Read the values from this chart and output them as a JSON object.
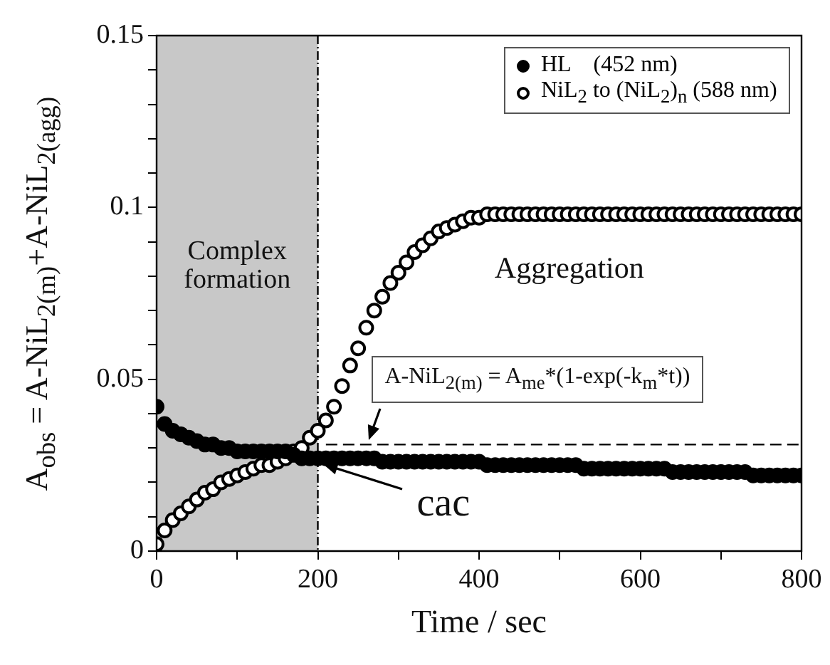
{
  "chart_data": {
    "type": "scatter",
    "xlabel": "Time / sec",
    "ylabel": "A$_{obs}$ = A-NiL$_{2(m)}$+A-NiL$_{2(agg)}$",
    "x": [
      0,
      10,
      20,
      30,
      40,
      50,
      60,
      70,
      80,
      90,
      100,
      110,
      120,
      130,
      140,
      150,
      160,
      170,
      180,
      190,
      200,
      210,
      220,
      230,
      240,
      250,
      260,
      270,
      280,
      290,
      300,
      310,
      320,
      330,
      340,
      350,
      360,
      370,
      380,
      390,
      400,
      410,
      420,
      430,
      440,
      450,
      460,
      470,
      480,
      490,
      500,
      510,
      520,
      530,
      540,
      550,
      560,
      570,
      580,
      590,
      600,
      610,
      620,
      630,
      640,
      650,
      660,
      670,
      680,
      690,
      700,
      710,
      720,
      730,
      740,
      750,
      760,
      770,
      780,
      790,
      800
    ],
    "series": [
      {
        "name": "HL    (452 nm)",
        "color": "#000000",
        "marker": "circle",
        "values": [
          0.042,
          0.037,
          0.035,
          0.034,
          0.033,
          0.032,
          0.031,
          0.031,
          0.03,
          0.03,
          0.029,
          0.029,
          0.029,
          0.029,
          0.029,
          0.029,
          0.029,
          0.028,
          0.027,
          0.027,
          0.027,
          0.027,
          0.027,
          0.027,
          0.027,
          0.027,
          0.027,
          0.027,
          0.026,
          0.026,
          0.026,
          0.026,
          0.026,
          0.026,
          0.026,
          0.026,
          0.026,
          0.026,
          0.026,
          0.026,
          0.026,
          0.025,
          0.025,
          0.025,
          0.025,
          0.025,
          0.025,
          0.025,
          0.025,
          0.025,
          0.025,
          0.025,
          0.025,
          0.024,
          0.024,
          0.024,
          0.024,
          0.024,
          0.024,
          0.024,
          0.024,
          0.024,
          0.024,
          0.024,
          0.023,
          0.023,
          0.023,
          0.023,
          0.023,
          0.023,
          0.023,
          0.023,
          0.023,
          0.023,
          0.022,
          0.022,
          0.022,
          0.022,
          0.022,
          0.022,
          0.022
        ]
      },
      {
        "name": "NiL$_{2}$ to (NiL$_{2}$)$_{n}$ (588 nm)",
        "color": "#ffffff",
        "marker": "circle",
        "values": [
          0.002,
          0.006,
          0.009,
          0.011,
          0.013,
          0.015,
          0.017,
          0.018,
          0.02,
          0.021,
          0.022,
          0.023,
          0.024,
          0.025,
          0.025,
          0.026,
          0.027,
          0.029,
          0.03,
          0.033,
          0.035,
          0.038,
          0.042,
          0.048,
          0.054,
          0.059,
          0.065,
          0.07,
          0.074,
          0.078,
          0.081,
          0.084,
          0.087,
          0.089,
          0.091,
          0.093,
          0.094,
          0.095,
          0.096,
          0.097,
          0.097,
          0.098,
          0.098,
          0.098,
          0.098,
          0.098,
          0.098,
          0.098,
          0.098,
          0.098,
          0.098,
          0.098,
          0.098,
          0.098,
          0.098,
          0.098,
          0.098,
          0.098,
          0.098,
          0.098,
          0.098,
          0.098,
          0.098,
          0.098,
          0.098,
          0.098,
          0.098,
          0.098,
          0.098,
          0.098,
          0.098,
          0.098,
          0.098,
          0.098,
          0.098,
          0.098,
          0.098,
          0.098,
          0.098,
          0.098,
          0.098
        ]
      },
      {
        "type": "line",
        "color": "#000000",
        "line_style": "dashed",
        "marker": "none",
        "x": [
          210,
          800
        ],
        "values": [
          0.031,
          0.031
        ]
      }
    ],
    "xlim": [
      0,
      800
    ],
    "xticks": [
      0,
      {
        "value": 100,
        "label": null
      },
      200,
      {
        "value": 300,
        "label": null
      },
      400,
      {
        "value": 500,
        "label": null
      },
      600,
      {
        "value": 700,
        "label": null
      },
      800
    ],
    "ylim": [
      0,
      0.15
    ],
    "yticks": [
      0,
      {
        "value": 0.01,
        "label": null
      },
      {
        "value": 0.02,
        "label": null
      },
      {
        "value": 0.03,
        "label": null
      },
      {
        "value": 0.04,
        "label": null
      },
      0.05,
      {
        "value": 0.06,
        "label": null
      },
      {
        "value": 0.07,
        "label": null
      },
      {
        "value": 0.08,
        "label": null
      },
      {
        "value": 0.09,
        "label": null
      },
      0.1,
      {
        "value": 0.11,
        "label": null
      },
      {
        "value": 0.12,
        "label": null
      },
      {
        "value": 0.13,
        "label": null
      },
      {
        "value": 0.14,
        "label": null
      },
      0.15
    ],
    "bands": [
      {
        "axis": "x",
        "from": 0,
        "to": 200,
        "label": "Complex formation",
        "color": "#c8c8c8"
      }
    ],
    "ref_lines": [
      {
        "axis": "x",
        "value": 200,
        "color": "#000000"
      }
    ],
    "annotations": [
      "Aggregation",
      {
        "text": "A-NiL$_{2(m)}$ = A$_{me}$*(1-exp(-k$_{m}$*t))",
        "x": 320,
        "y": 0.031
      },
      {
        "text": "cac",
        "x": 200,
        "y": 0.027
      }
    ],
    "grid": false,
    "legend": "top right"
  }
}
